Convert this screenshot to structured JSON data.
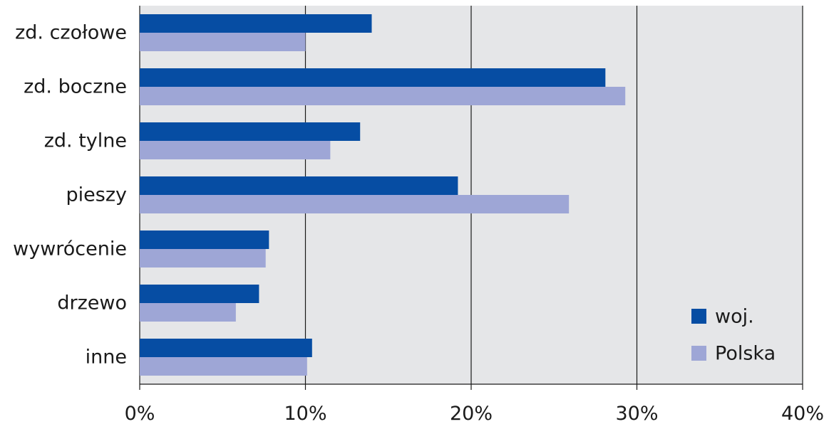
{
  "chart_data": {
    "type": "bar",
    "orientation": "horizontal",
    "categories": [
      "zd. czołowe",
      "zd. boczne",
      "zd. tylne",
      "pieszy",
      "wywrócenie",
      "drzewo",
      "inne"
    ],
    "series": [
      {
        "name": "woj.",
        "color": "#064da3",
        "values": [
          14.0,
          28.1,
          13.3,
          19.2,
          7.8,
          7.2,
          10.4
        ]
      },
      {
        "name": "Polska",
        "color": "#9ea6d6",
        "values": [
          10.0,
          29.3,
          11.5,
          25.9,
          7.6,
          5.8,
          10.1
        ]
      }
    ],
    "xlim": [
      0,
      40
    ],
    "xticks": [
      0,
      10,
      20,
      30,
      40
    ],
    "xtick_labels": [
      "0%",
      "10%",
      "20%",
      "30%",
      "40%"
    ],
    "grid": "vertical",
    "legend_position": "bottom-right",
    "plot_background": "#e5e6e8"
  }
}
